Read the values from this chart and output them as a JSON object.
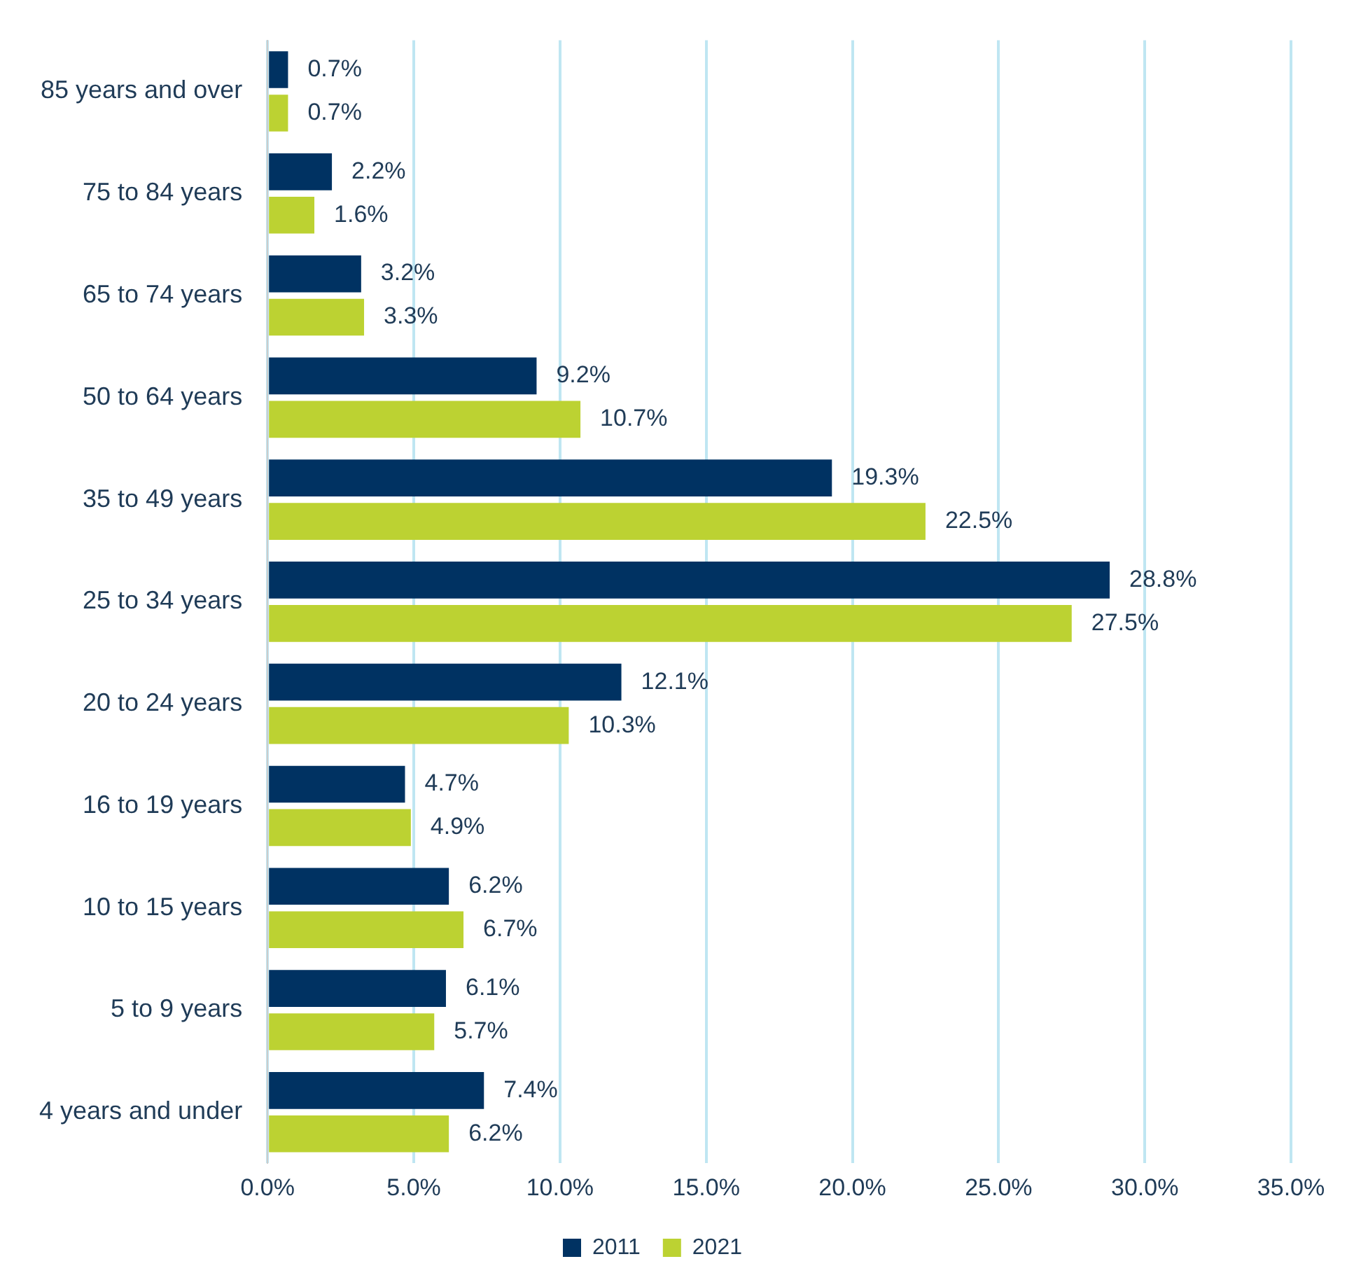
{
  "chart_data": {
    "type": "bar",
    "orientation": "horizontal",
    "categories": [
      "85 years and over",
      "75 to 84 years",
      "65 to 74 years",
      "50 to 64 years",
      "35 to 49 years",
      "25 to 34 years",
      "20 to 24 years",
      "16 to 19 years",
      "10 to 15 years",
      "5 to 9 years",
      "4 years and under"
    ],
    "series": [
      {
        "name": "2011",
        "color": "#003262",
        "values": [
          0.7,
          2.2,
          3.2,
          9.2,
          19.3,
          28.8,
          12.1,
          4.7,
          6.2,
          6.1,
          7.4
        ],
        "value_labels": [
          "0.7%",
          "2.2%",
          "3.2%",
          "9.2%",
          "19.3%",
          "28.8%",
          "12.1%",
          "4.7%",
          "6.2%",
          "6.1%",
          "7.4%"
        ]
      },
      {
        "name": "2021",
        "color": "#bcd232",
        "values": [
          0.7,
          1.6,
          3.3,
          10.7,
          22.5,
          27.5,
          10.3,
          4.9,
          6.7,
          5.7,
          6.2
        ],
        "value_labels": [
          "0.7%",
          "1.6%",
          "3.3%",
          "10.7%",
          "22.5%",
          "27.5%",
          "10.3%",
          "4.9%",
          "6.7%",
          "5.7%",
          "6.2%"
        ]
      }
    ],
    "xlim": [
      0,
      35
    ],
    "xticks": [
      {
        "value": 0,
        "label": "0.0%"
      },
      {
        "value": 5,
        "label": "5.0%"
      },
      {
        "value": 10,
        "label": "10.0%"
      },
      {
        "value": 15,
        "label": "15.0%"
      },
      {
        "value": 20,
        "label": "20.0%"
      },
      {
        "value": 25,
        "label": "25.0%"
      },
      {
        "value": 30,
        "label": "30.0%"
      },
      {
        "value": 35,
        "label": "35.0%"
      }
    ],
    "grid": "x",
    "legend": "bottom"
  }
}
